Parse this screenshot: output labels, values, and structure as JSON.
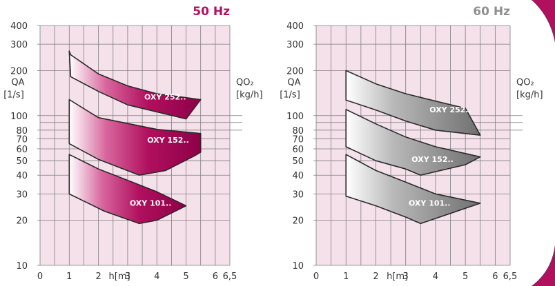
{
  "colors": {
    "plot_bg": "#f4e1ea",
    "grid": "#7d7d7d",
    "accent_50hz": "#b0105e",
    "accent_60hz": "#8f8f8f",
    "band_outline": "#2a2a2a",
    "label_text": "#ffffff",
    "corner_swoosh": "#b0105e"
  },
  "chart_data": [
    {
      "type": "area",
      "title": "50 Hz",
      "xlabel": "h[m]",
      "ylabel_left": "QA\n[1/s]",
      "ylabel_right": "QO₂\n[kg/h]",
      "x_scale": "linear",
      "y_scale": "log",
      "xlim": [
        0,
        6.5
      ],
      "ylim": [
        10,
        400
      ],
      "x_tick_labels": [
        {
          "x": 0,
          "label": "0"
        },
        {
          "x": 1,
          "label": "1"
        },
        {
          "x": 2,
          "label": "2"
        },
        {
          "x": 3,
          "label": "3"
        },
        {
          "x": 4,
          "label": "4"
        },
        {
          "x": 5,
          "label": "5"
        },
        {
          "x": 6,
          "label": "6"
        },
        {
          "x": 6.5,
          "label": "6,5"
        }
      ],
      "y_ticks": [
        10,
        20,
        30,
        40,
        50,
        60,
        70,
        80,
        100,
        200,
        300,
        400
      ],
      "grid": true,
      "series": [
        {
          "name": "OXY 252..",
          "outline": [
            [
              1,
              270
            ],
            [
              1.05,
              182
            ],
            [
              2,
              145
            ],
            [
              3,
              118
            ],
            [
              5,
              95
            ],
            [
              5.5,
              128
            ],
            [
              4,
              140
            ],
            [
              3,
              158
            ],
            [
              2,
              190
            ],
            [
              1.05,
              255
            ]
          ]
        },
        {
          "name": "OXY 152..",
          "outline": [
            [
              1,
              128
            ],
            [
              1,
              65
            ],
            [
              2,
              51
            ],
            [
              3.4,
              40
            ],
            [
              4.3,
              43
            ],
            [
              5.3,
              54
            ],
            [
              5.5,
              57
            ],
            [
              5.5,
              76
            ],
            [
              4,
              81
            ],
            [
              2,
              97
            ],
            [
              1,
              128
            ]
          ]
        },
        {
          "name": "OXY 101..",
          "outline": [
            [
              1,
              55
            ],
            [
              1,
              30
            ],
            [
              2.2,
              23
            ],
            [
              3.4,
              19
            ],
            [
              4,
              20
            ],
            [
              5,
              25
            ],
            [
              4,
              31
            ],
            [
              3,
              37
            ],
            [
              2,
              44
            ],
            [
              1,
              55
            ]
          ]
        }
      ]
    },
    {
      "type": "area",
      "title": "60 Hz",
      "xlabel": "h[m]",
      "ylabel_left": "QA\n[1/s]",
      "ylabel_right": "QO₂\n[kg/h]",
      "x_scale": "linear",
      "y_scale": "log",
      "xlim": [
        0,
        6.5
      ],
      "ylim": [
        10,
        400
      ],
      "x_tick_labels": [
        {
          "x": 0,
          "label": "0"
        },
        {
          "x": 1,
          "label": "1"
        },
        {
          "x": 2,
          "label": "2"
        },
        {
          "x": 3,
          "label": "3"
        },
        {
          "x": 4,
          "label": "4"
        },
        {
          "x": 5,
          "label": "5"
        },
        {
          "x": 6,
          "label": "6"
        },
        {
          "x": 6.5,
          "label": "6,5"
        }
      ],
      "y_ticks": [
        10,
        20,
        30,
        40,
        50,
        60,
        70,
        80,
        100,
        200,
        300,
        400
      ],
      "grid": true,
      "series": [
        {
          "name": "OXY 252..",
          "outline": [
            [
              1,
              200
            ],
            [
              1,
              127
            ],
            [
              2,
              109
            ],
            [
              3,
              92
            ],
            [
              4,
              80
            ],
            [
              5.5,
              74
            ],
            [
              5,
              112
            ],
            [
              4,
              125
            ],
            [
              3,
              140
            ],
            [
              2,
              163
            ],
            [
              1,
              200
            ]
          ]
        },
        {
          "name": "OXY 152..",
          "outline": [
            [
              1,
              110
            ],
            [
              1,
              62
            ],
            [
              2,
              50
            ],
            [
              3,
              44
            ],
            [
              3.5,
              40
            ],
            [
              5,
              47
            ],
            [
              5.5,
              53
            ],
            [
              4,
              62
            ],
            [
              3,
              72
            ],
            [
              2,
              88
            ],
            [
              1,
              110
            ]
          ]
        },
        {
          "name": "OXY 101..",
          "outline": [
            [
              1,
              55
            ],
            [
              1,
              29
            ],
            [
              2,
              25
            ],
            [
              3,
              21
            ],
            [
              3.5,
              19
            ],
            [
              5.5,
              26
            ],
            [
              4,
              30
            ],
            [
              3,
              36
            ],
            [
              2,
              43
            ],
            [
              1,
              55
            ]
          ]
        }
      ]
    }
  ]
}
